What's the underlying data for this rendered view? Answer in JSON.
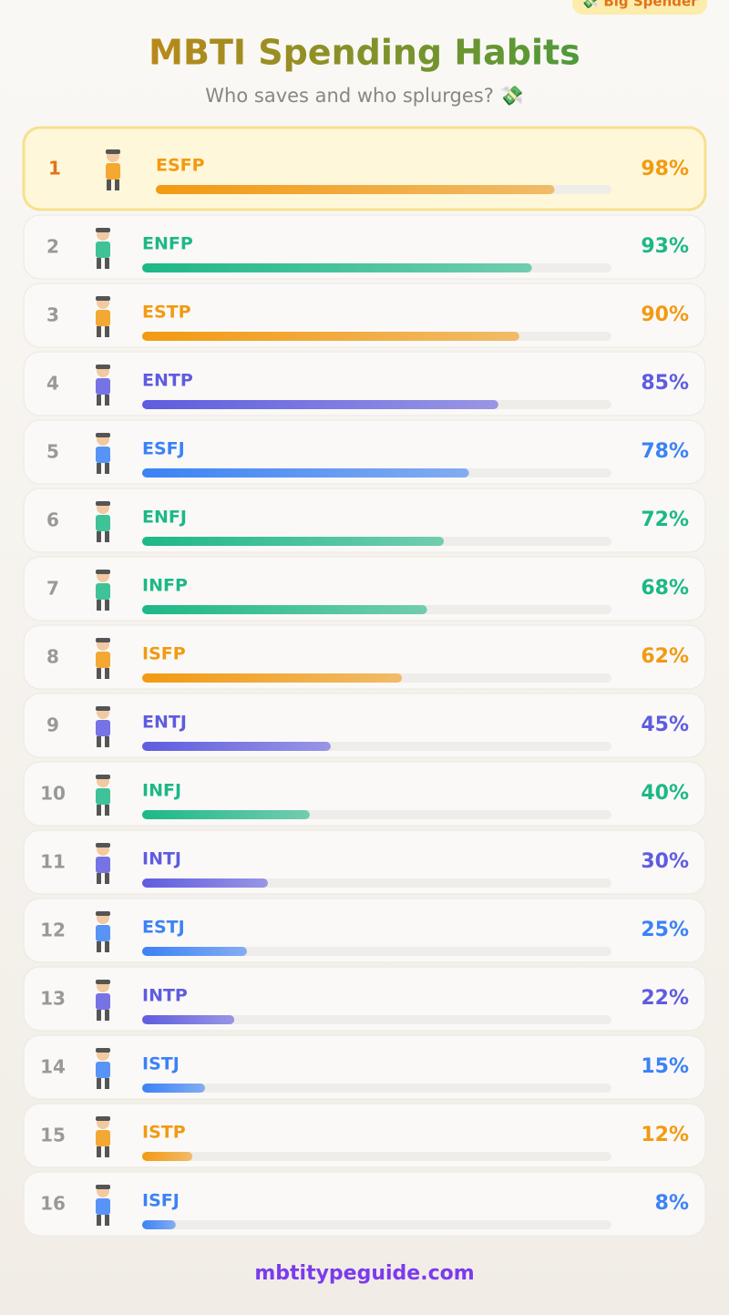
{
  "chart_data": {
    "type": "bar",
    "badge": "💸 Big Spender",
    "title": "MBTI Spending Habits",
    "subtitle": "Who saves and who splurges? 💸",
    "ranks": [
      1,
      2,
      3,
      4,
      5,
      6,
      7,
      8,
      9,
      10,
      11,
      12,
      13,
      14,
      15,
      16
    ],
    "categories": [
      "ESFP",
      "ENFP",
      "ESTP",
      "ENTP",
      "ESFJ",
      "ENFJ",
      "INFP",
      "ISFP",
      "ENTJ",
      "INFJ",
      "INTJ",
      "ESTJ",
      "INTP",
      "ISTJ",
      "ISTP",
      "ISFJ"
    ],
    "values": [
      98,
      93,
      90,
      85,
      78,
      72,
      68,
      62,
      45,
      40,
      30,
      25,
      22,
      15,
      12,
      8
    ],
    "value_labels": [
      "98%",
      "93%",
      "90%",
      "85%",
      "78%",
      "72%",
      "68%",
      "62%",
      "45%",
      "40%",
      "30%",
      "25%",
      "22%",
      "15%",
      "12%",
      "8%"
    ],
    "colors": [
      "#f29a12",
      "#1db887",
      "#f29a12",
      "#5f5ce0",
      "#3b82f6",
      "#1db887",
      "#1db887",
      "#f29a12",
      "#5f5ce0",
      "#1db887",
      "#5f5ce0",
      "#3b82f6",
      "#5f5ce0",
      "#3b82f6",
      "#f29a12",
      "#3b82f6"
    ],
    "xlim": [
      0,
      112
    ],
    "footer": "mbtitypeguide.com"
  }
}
